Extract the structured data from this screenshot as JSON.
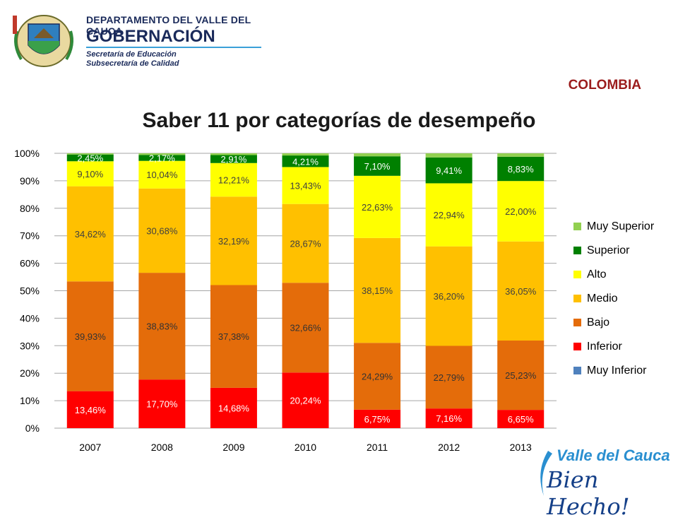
{
  "header": {
    "org_line1": "DEPARTAMENTO DEL VALLE DEL CAUCA",
    "org_line2": "GOBERNACIÓN",
    "org_line3": "Secretaría de Educación",
    "org_line4": "Subsecretaría de Calidad",
    "country": "COLOMBIA"
  },
  "brand": {
    "line1": "Valle del Cauca",
    "line2": "Bien Hecho!"
  },
  "chart_data": {
    "type": "bar",
    "stacked": true,
    "title": "Saber 11 por categorías de desempeño",
    "categories": [
      "2007",
      "2008",
      "2009",
      "2010",
      "2011",
      "2012",
      "2013"
    ],
    "ylim": [
      0,
      100
    ],
    "yticks": [
      "0%",
      "10%",
      "20%",
      "30%",
      "40%",
      "50%",
      "60%",
      "70%",
      "80%",
      "90%",
      "100%"
    ],
    "grid": true,
    "legend_position": "right",
    "series": [
      {
        "name": "Muy Inferior",
        "color": "#4f81bd",
        "values": [
          0,
          0,
          0,
          0,
          0,
          0,
          0
        ],
        "labels": [
          "",
          "",
          "",
          "",
          "",
          "",
          ""
        ]
      },
      {
        "name": "Inferior",
        "color": "#ff0000",
        "values": [
          13.46,
          17.7,
          14.68,
          20.24,
          6.75,
          7.16,
          6.65
        ],
        "labels": [
          "13,46%",
          "17,70%",
          "14,68%",
          "20,24%",
          "6,75%",
          "7,16%",
          "6,65%"
        ]
      },
      {
        "name": "Bajo",
        "color": "#e46c0a",
        "values": [
          39.93,
          38.83,
          37.38,
          32.66,
          24.29,
          22.79,
          25.23
        ],
        "labels": [
          "39,93%",
          "38,83%",
          "37,38%",
          "32,66%",
          "24,29%",
          "22,79%",
          "25,23%"
        ]
      },
      {
        "name": "Medio",
        "color": "#ffc000",
        "values": [
          34.62,
          30.68,
          32.19,
          28.67,
          38.15,
          36.2,
          36.05
        ],
        "labels": [
          "34,62%",
          "30,68%",
          "32,19%",
          "28,67%",
          "38,15%",
          "36,20%",
          "36,05%"
        ]
      },
      {
        "name": "Alto",
        "color": "#ffff00",
        "values": [
          9.1,
          10.04,
          12.21,
          13.43,
          22.63,
          22.94,
          22.0
        ],
        "labels": [
          "9,10%",
          "10,04%",
          "12,21%",
          "13,43%",
          "22,63%",
          "22,94%",
          "22,00%"
        ]
      },
      {
        "name": "Superior",
        "color": "#008000",
        "values": [
          2.45,
          2.17,
          2.91,
          4.21,
          7.1,
          9.41,
          8.83
        ],
        "labels": [
          "2,45%",
          "2,17%",
          "2,91%",
          "4,21%",
          "7,10%",
          "9,41%",
          "8,83%"
        ]
      },
      {
        "name": "Muy Superior",
        "color": "#92d050",
        "values": [
          0.44,
          0.58,
          0.63,
          0.79,
          1.08,
          1.5,
          1.24
        ],
        "labels": [
          "",
          "",
          "",
          "",
          "",
          "",
          ""
        ]
      }
    ],
    "legend_order": [
      "Muy Superior",
      "Superior",
      "Alto",
      "Medio",
      "Bajo",
      "Inferior",
      "Muy Inferior"
    ]
  }
}
